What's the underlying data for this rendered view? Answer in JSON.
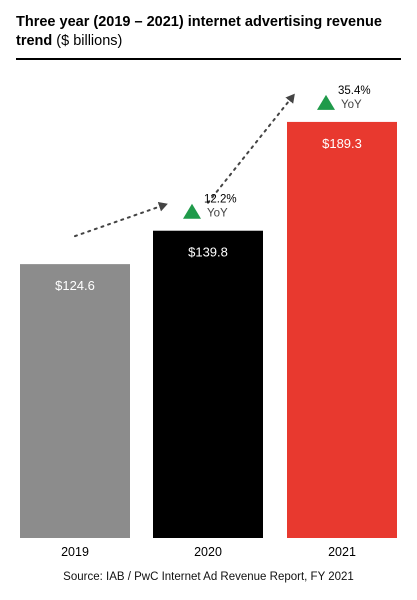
{
  "chart_data": {
    "type": "bar",
    "title": "Three year (2019 – 2021) internet advertising revenue trend",
    "subtitle": "($ billions)",
    "categories": [
      "2019",
      "2020",
      "2021"
    ],
    "values": [
      124.6,
      139.8,
      189.3
    ],
    "value_labels": [
      "$124.6",
      "$139.8",
      "$189.3"
    ],
    "bar_colors": [
      "#8c8c8c",
      "#000000",
      "#e8392f"
    ],
    "annotations": [
      {
        "category": "2020",
        "change": "12.2%",
        "label": "YoY"
      },
      {
        "category": "2021",
        "change": "35.4%",
        "label": "YoY"
      }
    ],
    "up_arrow_color": "#1f9a4a",
    "source": "Source: IAB / PwC Internet Ad Revenue Report, FY 2021"
  }
}
